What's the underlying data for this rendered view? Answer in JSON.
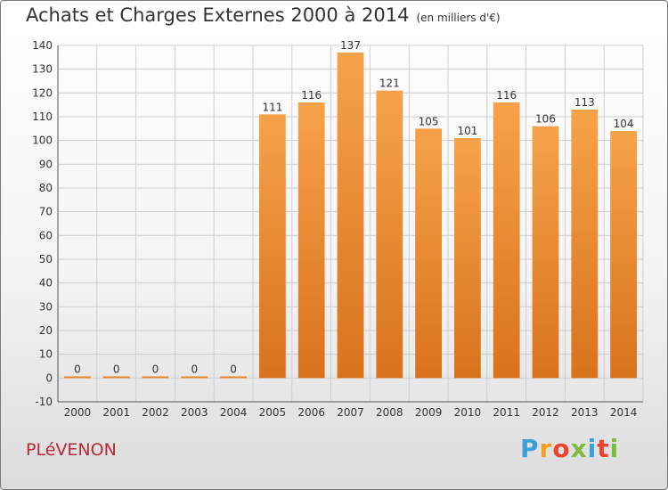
{
  "chart_data": {
    "type": "bar",
    "title": "Achats et Charges Externes 2000 à 2014",
    "unit": "(en milliers d'€)",
    "categories": [
      "2000",
      "2001",
      "2002",
      "2003",
      "2004",
      "2005",
      "2006",
      "2007",
      "2008",
      "2009",
      "2010",
      "2011",
      "2012",
      "2013",
      "2014"
    ],
    "values": [
      0,
      0,
      0,
      0,
      0,
      111,
      116,
      137,
      121,
      105,
      101,
      116,
      106,
      113,
      104
    ],
    "ylim": [
      -10,
      140
    ],
    "yticks": [
      -10,
      0,
      10,
      20,
      30,
      40,
      50,
      60,
      70,
      80,
      90,
      100,
      110,
      120,
      130,
      140
    ],
    "grid": true,
    "bar_color": "#f0953c",
    "grid_color": "#cfcfcf"
  },
  "commune": "PLéVENON",
  "logo": {
    "letters": [
      "P",
      "r",
      "o",
      "x",
      "i",
      "t",
      "i"
    ],
    "colors": [
      "#3aa0d8",
      "#f2a01c",
      "#e8452c",
      "#7dbb3c",
      "#3aa0d8",
      "#e8452c",
      "#7dbb3c"
    ]
  }
}
